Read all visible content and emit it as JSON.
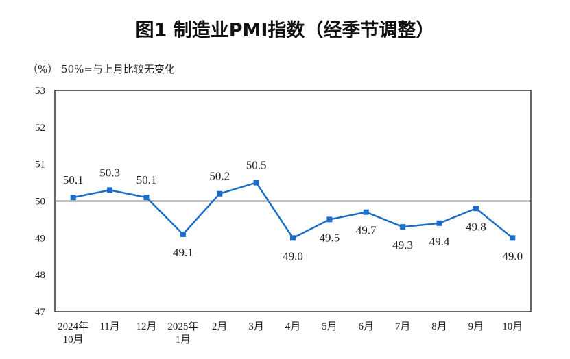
{
  "chart_data": {
    "type": "line",
    "title": "图1  制造业PMI指数（经季节调整）",
    "subtitle": "（%） 50%=与上月比较无变化",
    "categories": [
      [
        "2024年",
        "10月"
      ],
      [
        "11月"
      ],
      [
        "12月"
      ],
      [
        "2025年",
        "1月"
      ],
      [
        "2月"
      ],
      [
        "3月"
      ],
      [
        "4月"
      ],
      [
        "5月"
      ],
      [
        "6月"
      ],
      [
        "7月"
      ],
      [
        "8月"
      ],
      [
        "9月"
      ],
      [
        "10月"
      ]
    ],
    "values": [
      50.1,
      50.3,
      50.1,
      49.1,
      50.2,
      50.5,
      49.0,
      49.5,
      49.7,
      49.3,
      49.4,
      49.8,
      49.0
    ],
    "data_labels": [
      "50.1",
      "50.3",
      "50.1",
      "49.1",
      "50.2",
      "50.5",
      "49.0",
      "49.5",
      "49.7",
      "49.3",
      "49.4",
      "49.8",
      "49.0"
    ],
    "ylim": [
      47,
      53
    ],
    "yticks": [
      "47",
      "48",
      "49",
      "50",
      "51",
      "52",
      "53"
    ],
    "reference_line": 50,
    "grid": false,
    "line_color": "#1a6cc8",
    "marker": "square"
  }
}
